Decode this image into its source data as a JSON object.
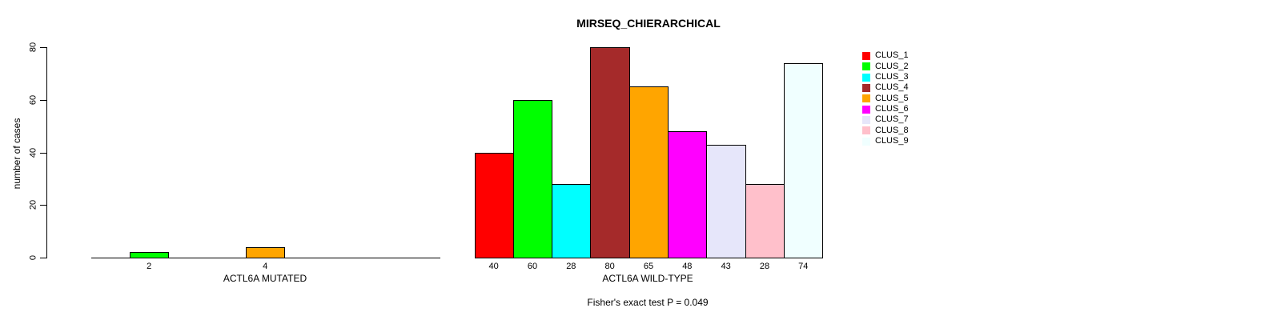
{
  "title": "MIRSEQ_CHIERARCHICAL",
  "footnote": "Fisher's exact test P = 0.049",
  "y_axis": {
    "label": "number of cases",
    "ticks": [
      0,
      20,
      40,
      60,
      80
    ],
    "range": [
      0,
      80
    ]
  },
  "legend": {
    "position": "right",
    "items": [
      {
        "label": "CLUS_1",
        "color": "#FF0000"
      },
      {
        "label": "CLUS_2",
        "color": "#00FF00"
      },
      {
        "label": "CLUS_3",
        "color": "#00FFFF"
      },
      {
        "label": "CLUS_4",
        "color": "#A52A2A"
      },
      {
        "label": "CLUS_5",
        "color": "#FFA500"
      },
      {
        "label": "CLUS_6",
        "color": "#FF00FF"
      },
      {
        "label": "CLUS_7",
        "color": "#E6E6FA"
      },
      {
        "label": "CLUS_8",
        "color": "#FFC0CB"
      },
      {
        "label": "CLUS_9",
        "color": "#F0FFFF"
      }
    ]
  },
  "chart_data": [
    {
      "type": "bar",
      "xlabel": "ACTL6A MUTATED",
      "ylabel": "number of cases",
      "ylim": [
        0,
        80
      ],
      "grid": false,
      "categories": [
        "CLUS_1",
        "CLUS_2",
        "CLUS_3",
        "CLUS_4",
        "CLUS_5",
        "CLUS_6",
        "CLUS_7",
        "CLUS_8",
        "CLUS_9"
      ],
      "values": [
        0,
        2,
        0,
        0,
        4,
        0,
        0,
        0,
        0
      ],
      "bar_labels": [
        "",
        "2",
        "",
        "",
        "4",
        "",
        "",
        "",
        ""
      ],
      "colors": [
        "#FF0000",
        "#00FF00",
        "#00FFFF",
        "#A52A2A",
        "#FFA500",
        "#FF00FF",
        "#E6E6FA",
        "#FFC0CB",
        "#F0FFFF"
      ]
    },
    {
      "type": "bar",
      "xlabel": "ACTL6A WILD-TYPE",
      "ylabel": "number of cases",
      "ylim": [
        0,
        80
      ],
      "grid": false,
      "categories": [
        "CLUS_1",
        "CLUS_2",
        "CLUS_3",
        "CLUS_4",
        "CLUS_5",
        "CLUS_6",
        "CLUS_7",
        "CLUS_8",
        "CLUS_9"
      ],
      "values": [
        40,
        60,
        28,
        80,
        65,
        48,
        43,
        28,
        74
      ],
      "bar_labels": [
        "40",
        "60",
        "28",
        "80",
        "65",
        "48",
        "43",
        "28",
        "74"
      ],
      "colors": [
        "#FF0000",
        "#00FF00",
        "#00FFFF",
        "#A52A2A",
        "#FFA500",
        "#FF00FF",
        "#E6E6FA",
        "#FFC0CB",
        "#F0FFFF"
      ]
    }
  ]
}
